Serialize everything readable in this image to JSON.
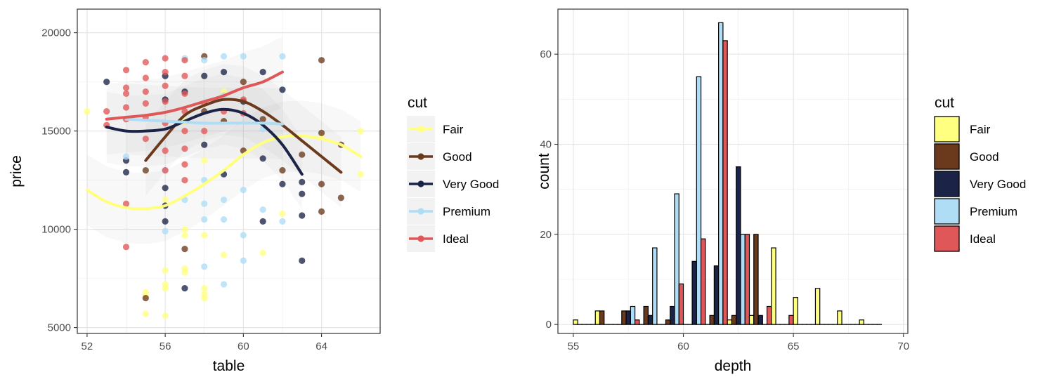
{
  "chart_data": [
    {
      "type": "scatter",
      "x_label": "table",
      "y_label": "price",
      "x_ticks": [
        "52",
        "56",
        "60",
        "64"
      ],
      "y_ticks": [
        "5000",
        "10000",
        "15000",
        "20000"
      ],
      "xlim": [
        51.5,
        67.0
      ],
      "ylim": [
        4700,
        21200
      ],
      "grid": true,
      "legend": {
        "title": "cut",
        "position": "right",
        "entries": [
          {
            "name": "Fair",
            "color": "#FFFF80"
          },
          {
            "name": "Good",
            "color": "#6B3A1C"
          },
          {
            "name": "Very Good",
            "color": "#1B2447"
          },
          {
            "name": "Premium",
            "color": "#AEDDF5"
          },
          {
            "name": "Ideal",
            "color": "#E05759"
          }
        ]
      },
      "points": [
        {
          "cut": "Fair",
          "x": 52,
          "y": 16000
        },
        {
          "cut": "Fair",
          "x": 55,
          "y": 6800
        },
        {
          "cut": "Fair",
          "x": 55,
          "y": 6600
        },
        {
          "cut": "Fair",
          "x": 55,
          "y": 5700
        },
        {
          "cut": "Fair",
          "x": 56,
          "y": 7900
        },
        {
          "cut": "Fair",
          "x": 56,
          "y": 7200
        },
        {
          "cut": "Fair",
          "x": 56,
          "y": 7000
        },
        {
          "cut": "Fair",
          "x": 56,
          "y": 5600
        },
        {
          "cut": "Fair",
          "x": 56,
          "y": 11500
        },
        {
          "cut": "Fair",
          "x": 57,
          "y": 10000
        },
        {
          "cut": "Fair",
          "x": 57,
          "y": 9700
        },
        {
          "cut": "Fair",
          "x": 57,
          "y": 8000
        },
        {
          "cut": "Fair",
          "x": 57,
          "y": 7800
        },
        {
          "cut": "Fair",
          "x": 58,
          "y": 7000
        },
        {
          "cut": "Fair",
          "x": 58,
          "y": 6700
        },
        {
          "cut": "Fair",
          "x": 58,
          "y": 6500
        },
        {
          "cut": "Fair",
          "x": 58,
          "y": 9700
        },
        {
          "cut": "Fair",
          "x": 59,
          "y": 8700
        },
        {
          "cut": "Fair",
          "x": 61,
          "y": 8800
        },
        {
          "cut": "Fair",
          "x": 62,
          "y": 10800
        },
        {
          "cut": "Fair",
          "x": 64,
          "y": 14700
        },
        {
          "cut": "Fair",
          "x": 66,
          "y": 15000
        },
        {
          "cut": "Fair",
          "x": 66,
          "y": 12800
        },
        {
          "cut": "Fair",
          "x": 57,
          "y": 15500
        },
        {
          "cut": "Fair",
          "x": 59,
          "y": 17000
        },
        {
          "cut": "Fair",
          "x": 58,
          "y": 13500
        },
        {
          "cut": "Good",
          "x": 55,
          "y": 13000
        },
        {
          "cut": "Good",
          "x": 55,
          "y": 6500
        },
        {
          "cut": "Good",
          "x": 57,
          "y": 9000
        },
        {
          "cut": "Good",
          "x": 58,
          "y": 18800
        },
        {
          "cut": "Good",
          "x": 58,
          "y": 16000
        },
        {
          "cut": "Good",
          "x": 59,
          "y": 15500
        },
        {
          "cut": "Good",
          "x": 60,
          "y": 17500
        },
        {
          "cut": "Good",
          "x": 60,
          "y": 14000
        },
        {
          "cut": "Good",
          "x": 62,
          "y": 13000
        },
        {
          "cut": "Good",
          "x": 63,
          "y": 13800
        },
        {
          "cut": "Good",
          "x": 64,
          "y": 18600
        },
        {
          "cut": "Good",
          "x": 64,
          "y": 14900
        },
        {
          "cut": "Good",
          "x": 64,
          "y": 12300
        },
        {
          "cut": "Good",
          "x": 64,
          "y": 10900
        },
        {
          "cut": "Good",
          "x": 65,
          "y": 14300
        },
        {
          "cut": "Good",
          "x": 65,
          "y": 11600
        },
        {
          "cut": "Good",
          "x": 61,
          "y": 15600
        },
        {
          "cut": "Very Good",
          "x": 53,
          "y": 17500
        },
        {
          "cut": "Very Good",
          "x": 54,
          "y": 13500
        },
        {
          "cut": "Very Good",
          "x": 54,
          "y": 12900
        },
        {
          "cut": "Very Good",
          "x": 56,
          "y": 17800
        },
        {
          "cut": "Very Good",
          "x": 56,
          "y": 16600
        },
        {
          "cut": "Very Good",
          "x": 56,
          "y": 12100
        },
        {
          "cut": "Very Good",
          "x": 56,
          "y": 11200
        },
        {
          "cut": "Very Good",
          "x": 56,
          "y": 10400
        },
        {
          "cut": "Very Good",
          "x": 57,
          "y": 17000
        },
        {
          "cut": "Very Good",
          "x": 57,
          "y": 7000
        },
        {
          "cut": "Very Good",
          "x": 58,
          "y": 17800
        },
        {
          "cut": "Very Good",
          "x": 58,
          "y": 14300
        },
        {
          "cut": "Very Good",
          "x": 59,
          "y": 18000
        },
        {
          "cut": "Very Good",
          "x": 59,
          "y": 12800
        },
        {
          "cut": "Very Good",
          "x": 60,
          "y": 16500
        },
        {
          "cut": "Very Good",
          "x": 61,
          "y": 18000
        },
        {
          "cut": "Very Good",
          "x": 61,
          "y": 13600
        },
        {
          "cut": "Very Good",
          "x": 61,
          "y": 10400
        },
        {
          "cut": "Very Good",
          "x": 62,
          "y": 17100
        },
        {
          "cut": "Very Good",
          "x": 62,
          "y": 12300
        },
        {
          "cut": "Very Good",
          "x": 63,
          "y": 12400
        },
        {
          "cut": "Very Good",
          "x": 63,
          "y": 11800
        },
        {
          "cut": "Very Good",
          "x": 63,
          "y": 10700
        },
        {
          "cut": "Very Good",
          "x": 63,
          "y": 8400
        },
        {
          "cut": "Premium",
          "x": 54,
          "y": 13700
        },
        {
          "cut": "Premium",
          "x": 56,
          "y": 13000
        },
        {
          "cut": "Premium",
          "x": 56,
          "y": 9900
        },
        {
          "cut": "Premium",
          "x": 57,
          "y": 18700
        },
        {
          "cut": "Premium",
          "x": 57,
          "y": 11500
        },
        {
          "cut": "Premium",
          "x": 58,
          "y": 18600
        },
        {
          "cut": "Premium",
          "x": 58,
          "y": 11300
        },
        {
          "cut": "Premium",
          "x": 58,
          "y": 10500
        },
        {
          "cut": "Premium",
          "x": 58,
          "y": 8100
        },
        {
          "cut": "Premium",
          "x": 59,
          "y": 18800
        },
        {
          "cut": "Premium",
          "x": 59,
          "y": 16800
        },
        {
          "cut": "Premium",
          "x": 59,
          "y": 11500
        },
        {
          "cut": "Premium",
          "x": 59,
          "y": 10500
        },
        {
          "cut": "Premium",
          "x": 59,
          "y": 7200
        },
        {
          "cut": "Premium",
          "x": 60,
          "y": 18800
        },
        {
          "cut": "Premium",
          "x": 60,
          "y": 12000
        },
        {
          "cut": "Premium",
          "x": 60,
          "y": 9700
        },
        {
          "cut": "Premium",
          "x": 60,
          "y": 8400
        },
        {
          "cut": "Premium",
          "x": 61,
          "y": 15100
        },
        {
          "cut": "Premium",
          "x": 61,
          "y": 11000
        },
        {
          "cut": "Premium",
          "x": 62,
          "y": 18800
        },
        {
          "cut": "Premium",
          "x": 62,
          "y": 10400
        },
        {
          "cut": "Premium",
          "x": 58,
          "y": 12500
        },
        {
          "cut": "Ideal",
          "x": 53,
          "y": 16000
        },
        {
          "cut": "Ideal",
          "x": 53,
          "y": 15300
        },
        {
          "cut": "Ideal",
          "x": 54,
          "y": 18100
        },
        {
          "cut": "Ideal",
          "x": 54,
          "y": 17200
        },
        {
          "cut": "Ideal",
          "x": 54,
          "y": 16900
        },
        {
          "cut": "Ideal",
          "x": 54,
          "y": 16200
        },
        {
          "cut": "Ideal",
          "x": 54,
          "y": 15600
        },
        {
          "cut": "Ideal",
          "x": 54,
          "y": 11300
        },
        {
          "cut": "Ideal",
          "x": 54,
          "y": 9100
        },
        {
          "cut": "Ideal",
          "x": 55,
          "y": 18500
        },
        {
          "cut": "Ideal",
          "x": 55,
          "y": 17700
        },
        {
          "cut": "Ideal",
          "x": 55,
          "y": 17000
        },
        {
          "cut": "Ideal",
          "x": 55,
          "y": 16400
        },
        {
          "cut": "Ideal",
          "x": 55,
          "y": 15700
        },
        {
          "cut": "Ideal",
          "x": 55,
          "y": 14600
        },
        {
          "cut": "Ideal",
          "x": 56,
          "y": 18700
        },
        {
          "cut": "Ideal",
          "x": 56,
          "y": 18000
        },
        {
          "cut": "Ideal",
          "x": 56,
          "y": 17300
        },
        {
          "cut": "Ideal",
          "x": 56,
          "y": 16500
        },
        {
          "cut": "Ideal",
          "x": 56,
          "y": 15400
        },
        {
          "cut": "Ideal",
          "x": 56,
          "y": 14000
        },
        {
          "cut": "Ideal",
          "x": 56,
          "y": 13000
        },
        {
          "cut": "Ideal",
          "x": 57,
          "y": 18600
        },
        {
          "cut": "Ideal",
          "x": 57,
          "y": 17800
        },
        {
          "cut": "Ideal",
          "x": 57,
          "y": 16900
        },
        {
          "cut": "Ideal",
          "x": 57,
          "y": 16000
        },
        {
          "cut": "Ideal",
          "x": 57,
          "y": 15000
        },
        {
          "cut": "Ideal",
          "x": 57,
          "y": 14100
        },
        {
          "cut": "Ideal",
          "x": 57,
          "y": 13300
        },
        {
          "cut": "Ideal",
          "x": 57,
          "y": 12500
        },
        {
          "cut": "Ideal",
          "x": 58,
          "y": 16400
        },
        {
          "cut": "Ideal",
          "x": 58,
          "y": 15000
        },
        {
          "cut": "Ideal",
          "x": 59,
          "y": 16000
        },
        {
          "cut": "Ideal",
          "x": 60,
          "y": 16600
        },
        {
          "cut": "Ideal",
          "x": 60,
          "y": 15900
        }
      ],
      "smooth_lines": [
        {
          "cut": "Fair",
          "x": [
            52,
            53,
            54,
            55,
            56,
            57,
            58,
            59,
            60,
            61,
            62,
            63,
            64,
            65,
            66
          ],
          "y": [
            12000,
            11400,
            11100,
            11050,
            11200,
            11700,
            12300,
            13000,
            13800,
            14400,
            14700,
            14750,
            14600,
            14300,
            13700
          ]
        },
        {
          "cut": "Good",
          "x": [
            55,
            56,
            57,
            58,
            59,
            60,
            61,
            62,
            63,
            64,
            65
          ],
          "y": [
            13500,
            14700,
            15800,
            16300,
            16600,
            16500,
            16000,
            15300,
            14500,
            13700,
            12900
          ]
        },
        {
          "cut": "Very Good",
          "x": [
            53,
            54,
            55,
            56,
            57,
            58,
            59,
            60,
            61,
            62,
            63
          ],
          "y": [
            15200,
            15000,
            15000,
            15100,
            15500,
            15900,
            16100,
            15900,
            15300,
            14300,
            12800
          ]
        },
        {
          "cut": "Premium",
          "x": [
            54,
            55,
            56,
            57,
            58,
            59,
            60,
            61,
            62
          ],
          "y": [
            15600,
            15550,
            15500,
            15450,
            15400,
            15400,
            15400,
            15400,
            15350
          ]
        },
        {
          "cut": "Ideal",
          "x": [
            53,
            54,
            55,
            56,
            57,
            58,
            59,
            60,
            61,
            62
          ],
          "y": [
            15600,
            15700,
            15800,
            15950,
            16200,
            16500,
            16800,
            17200,
            17500,
            18000
          ]
        }
      ]
    },
    {
      "type": "bar",
      "x_label": "depth",
      "y_label": "count",
      "x_ticks": [
        "55",
        "60",
        "65",
        "70"
      ],
      "y_ticks": [
        "0",
        "20",
        "40",
        "60"
      ],
      "xlim": [
        54.3,
        70.2
      ],
      "ylim": [
        -2,
        70
      ],
      "grid": true,
      "legend": {
        "title": "cut",
        "position": "right",
        "entries": [
          {
            "name": "Fair",
            "color": "#FFFF80"
          },
          {
            "name": "Good",
            "color": "#6B3A1C"
          },
          {
            "name": "Very Good",
            "color": "#1B2447"
          },
          {
            "name": "Premium",
            "color": "#AEDDF5"
          },
          {
            "name": "Ideal",
            "color": "#E05759"
          }
        ]
      },
      "bin_width": 1.0,
      "bin_centers": [
        55.5,
        56.5,
        57.5,
        58.5,
        59.5,
        60.5,
        61.5,
        62.5,
        63.5,
        64.5,
        65.5,
        66.5,
        67.5,
        68.5
      ],
      "series": [
        {
          "name": "Fair",
          "color": "#FFFF80",
          "values": [
            1,
            3,
            0,
            0,
            0,
            0,
            0,
            1,
            2,
            17,
            6,
            8,
            3,
            1
          ]
        },
        {
          "name": "Good",
          "color": "#6B3A1C",
          "values": [
            0,
            3,
            3,
            4,
            1,
            0,
            2,
            2,
            20,
            0,
            0,
            0,
            0,
            0
          ]
        },
        {
          "name": "Very Good",
          "color": "#1B2447",
          "values": [
            0,
            0,
            3,
            2,
            4,
            14,
            13,
            35,
            2,
            0,
            0,
            0,
            0,
            0
          ]
        },
        {
          "name": "Premium",
          "color": "#AEDDF5",
          "values": [
            0,
            0,
            4,
            17,
            29,
            55,
            67,
            20,
            0,
            0,
            0,
            0,
            0,
            0
          ]
        },
        {
          "name": "Ideal",
          "color": "#E05759",
          "values": [
            0,
            0,
            1,
            0,
            9,
            19,
            63,
            20,
            4,
            2,
            0,
            0,
            0,
            0
          ]
        }
      ]
    }
  ]
}
